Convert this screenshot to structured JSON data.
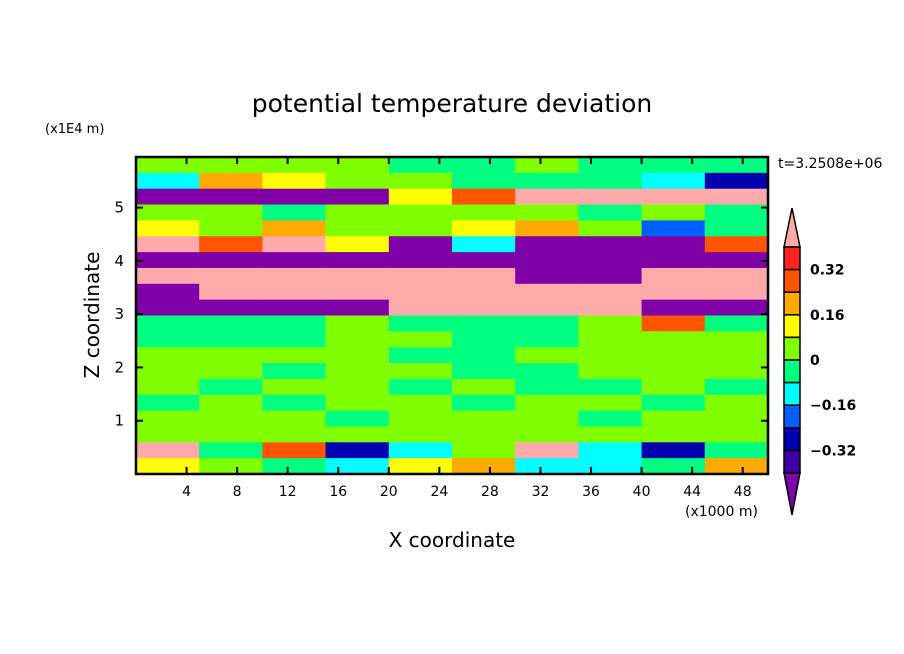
{
  "chart_data": {
    "type": "heatmap",
    "title": "potential temperature deviation",
    "xlabel": "X coordinate",
    "ylabel": "Z coordinate",
    "x_unit": "(x1000 m)",
    "y_unit": "(x1E4 m)",
    "time_label": "t=3.2508e+06",
    "xlim": [
      0,
      50
    ],
    "ylim": [
      0,
      5.95
    ],
    "x_ticks": [
      "4",
      "8",
      "12",
      "16",
      "20",
      "24",
      "28",
      "32",
      "36",
      "40",
      "44",
      "48"
    ],
    "y_ticks": [
      "1",
      "2",
      "3",
      "4",
      "5"
    ],
    "levels": [
      -0.4,
      -0.32,
      -0.24,
      -0.16,
      -0.08,
      0,
      0.08,
      0.16,
      0.24,
      0.32,
      0.4
    ],
    "colorbar_labels": [
      "0.32",
      "0.16",
      "0",
      "-0.16",
      "-0.32"
    ],
    "colors": [
      "#8000a8",
      "#3c00a0",
      "#0000b0",
      "#0060ff",
      "#00ffff",
      "#00ff80",
      "#80ff00",
      "#ffff00",
      "#ffaa00",
      "#ff5500",
      "#ff2020",
      "#ffaaaa"
    ],
    "grid_x_centers": [
      2.5,
      7.5,
      12.5,
      17.5,
      22.5,
      27.5,
      32.5,
      37.5,
      42.5,
      47.5
    ],
    "grid_z_centers": [
      5.8,
      5.5,
      5.2,
      4.9,
      4.6,
      4.3,
      4.0,
      3.7,
      3.4,
      3.1,
      2.8,
      2.5,
      2.2,
      1.9,
      1.6,
      1.3,
      1.0,
      0.7,
      0.4,
      0.1
    ],
    "values": [
      [
        0.04,
        0.04,
        0.04,
        0.04,
        -0.04,
        -0.04,
        0.04,
        -0.04,
        -0.04,
        -0.04
      ],
      [
        -0.12,
        0.2,
        0.12,
        0.04,
        0.04,
        -0.04,
        -0.04,
        -0.04,
        -0.12,
        -0.3
      ],
      [
        -0.5,
        -0.5,
        -0.5,
        -0.5,
        0.12,
        0.3,
        0.5,
        0.5,
        0.5,
        0.5
      ],
      [
        0.04,
        0.04,
        -0.04,
        0.04,
        0.04,
        0.04,
        0.04,
        -0.04,
        0.04,
        -0.04
      ],
      [
        0.12,
        0.04,
        0.2,
        0.04,
        0.04,
        0.12,
        0.2,
        0.04,
        -0.2,
        -0.04
      ],
      [
        0.5,
        0.3,
        0.5,
        0.12,
        -0.5,
        -0.12,
        -0.5,
        -0.5,
        -0.5,
        0.3
      ],
      [
        -0.5,
        -0.5,
        -0.5,
        -0.5,
        -0.5,
        -0.5,
        -0.5,
        -0.5,
        -0.5,
        -0.5
      ],
      [
        0.5,
        0.5,
        0.5,
        0.5,
        0.5,
        0.5,
        -0.5,
        -0.5,
        0.5,
        0.5
      ],
      [
        -0.5,
        0.5,
        0.5,
        0.5,
        0.5,
        0.5,
        0.5,
        0.5,
        0.5,
        0.5
      ],
      [
        -0.5,
        -0.5,
        -0.5,
        -0.5,
        0.5,
        0.5,
        0.5,
        0.5,
        -0.5,
        -0.5
      ],
      [
        -0.04,
        -0.04,
        -0.04,
        0.04,
        -0.04,
        -0.04,
        -0.04,
        0.04,
        0.3,
        -0.04
      ],
      [
        -0.04,
        -0.04,
        -0.04,
        0.04,
        0.04,
        -0.04,
        -0.04,
        0.04,
        0.04,
        0.04
      ],
      [
        0.04,
        0.04,
        0.04,
        0.04,
        -0.04,
        -0.04,
        0.04,
        0.04,
        0.04,
        0.04
      ],
      [
        0.04,
        0.04,
        -0.04,
        0.04,
        0.04,
        -0.04,
        -0.04,
        0.04,
        0.04,
        0.04
      ],
      [
        0.04,
        -0.04,
        0.04,
        0.04,
        -0.04,
        0.04,
        -0.04,
        -0.04,
        0.04,
        -0.04
      ],
      [
        -0.04,
        0.04,
        -0.04,
        0.04,
        0.04,
        -0.04,
        0.04,
        0.04,
        -0.04,
        0.04
      ],
      [
        0.04,
        0.04,
        0.04,
        -0.04,
        0.04,
        0.04,
        0.04,
        -0.04,
        0.04,
        0.04
      ],
      [
        0.04,
        0.04,
        0.04,
        0.04,
        0.04,
        0.04,
        0.04,
        0.04,
        0.04,
        0.04
      ],
      [
        0.5,
        -0.04,
        0.3,
        -0.3,
        -0.12,
        0.04,
        0.5,
        -0.12,
        -0.3,
        -0.04
      ],
      [
        0.12,
        0.04,
        -0.04,
        -0.12,
        0.12,
        0.2,
        -0.12,
        -0.12,
        -0.04,
        0.2
      ]
    ]
  }
}
